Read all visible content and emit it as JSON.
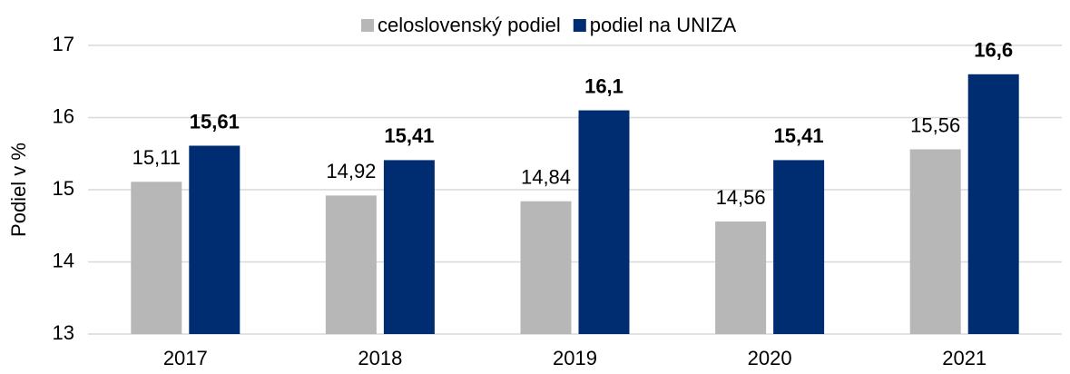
{
  "chart_data": {
    "type": "bar",
    "y_label": "Podiel v  %",
    "categories": [
      "2017",
      "2018",
      "2019",
      "2020",
      "2021"
    ],
    "series": [
      {
        "name": "celoslovenský podiel",
        "color": "#b7b7b7",
        "values": [
          15.11,
          14.92,
          14.84,
          14.56,
          15.56
        ],
        "value_labels": [
          "15,11",
          "14,92",
          "14,84",
          "14,56",
          "15,56"
        ],
        "bold": false
      },
      {
        "name": "podiel na UNIZA",
        "color": "#002d72",
        "values": [
          15.61,
          15.41,
          16.1,
          15.41,
          16.6
        ],
        "value_labels": [
          "15,61",
          "15,41",
          "16,1",
          "15,41",
          "16,6"
        ],
        "bold": true
      }
    ],
    "ylim": [
      13,
      17
    ],
    "yticks": [
      13,
      14,
      15,
      16,
      17
    ],
    "grid": true,
    "legend": "top"
  }
}
